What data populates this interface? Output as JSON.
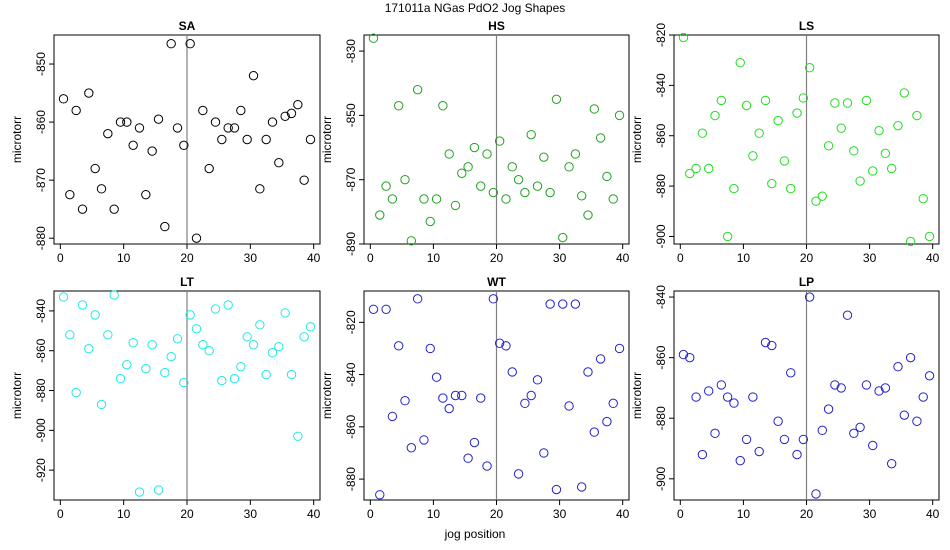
{
  "title": "171011a   NGas PdO2 Jog Shapes",
  "xlabel_bottom": "jog position",
  "chart_data": [
    {
      "type": "scatter",
      "title": "SA",
      "ylabel": "microtorr",
      "color": "#000000",
      "xlim": [
        -1,
        41
      ],
      "ylim": [
        -881,
        -845
      ],
      "yticks": [
        -880,
        -870,
        -860,
        -850
      ],
      "xticks": [
        0,
        10,
        20,
        30,
        40
      ],
      "vline": 20,
      "x": [
        0.5,
        1.5,
        2.5,
        3.5,
        4.5,
        5.5,
        6.5,
        7.5,
        8.5,
        9.5,
        10.5,
        11.5,
        12.5,
        13.5,
        14.5,
        15.5,
        16.5,
        17.5,
        18.5,
        19.5,
        20.5,
        21.5,
        22.5,
        23.5,
        24.5,
        25.5,
        26.5,
        27.5,
        28.5,
        29.5,
        30.5,
        31.5,
        32.5,
        33.5,
        34.5,
        35.5,
        36.5,
        37.5,
        38.5,
        39.5
      ],
      "y": [
        -856,
        -872.5,
        -858,
        -875,
        -855,
        -868,
        -871.5,
        -862,
        -875,
        -860,
        -860,
        -864,
        -861,
        -872.5,
        -865,
        -859.5,
        -878,
        -846.5,
        -861,
        -864,
        -846.5,
        -880,
        -858,
        -868,
        -860,
        -863,
        -861,
        -861,
        -858,
        -863,
        -852,
        -871.5,
        -863,
        -860,
        -867,
        -859,
        -858.5,
        -857,
        -870,
        -863
      ]
    },
    {
      "type": "scatter",
      "title": "HS",
      "ylabel": "microtorr",
      "color": "#22a022",
      "xlim": [
        -1,
        41
      ],
      "ylim": [
        -890,
        -825
      ],
      "yticks": [
        -890,
        -870,
        -850,
        -830
      ],
      "xticks": [
        0,
        10,
        20,
        30,
        40
      ],
      "vline": 20,
      "x": [
        0.5,
        1.5,
        2.5,
        3.5,
        4.5,
        5.5,
        6.5,
        7.5,
        8.5,
        9.5,
        10.5,
        11.5,
        12.5,
        13.5,
        14.5,
        15.5,
        16.5,
        17.5,
        18.5,
        19.5,
        20.5,
        21.5,
        22.5,
        23.5,
        24.5,
        25.5,
        26.5,
        27.5,
        28.5,
        29.5,
        30.5,
        31.5,
        32.5,
        33.5,
        34.5,
        35.5,
        36.5,
        37.5,
        38.5,
        39.5
      ],
      "y": [
        -826,
        -881,
        -872,
        -876,
        -847,
        -870,
        -889,
        -842,
        -876,
        -883,
        -876,
        -847,
        -862,
        -878,
        -868,
        -866,
        -860,
        -872,
        -862,
        -874,
        -858,
        -876,
        -866,
        -870,
        -874,
        -856,
        -872,
        -863,
        -874,
        -845,
        -888,
        -866,
        -862,
        -875,
        -881,
        -848,
        -857,
        -869,
        -876,
        -850
      ]
    },
    {
      "type": "scatter",
      "title": "LS",
      "ylabel": "microtorr",
      "color": "#22dd22",
      "xlim": [
        -1,
        41
      ],
      "ylim": [
        -903,
        -820
      ],
      "yticks": [
        -900,
        -880,
        -860,
        -840,
        -820
      ],
      "xticks": [
        0,
        10,
        20,
        30,
        40
      ],
      "vline": 20,
      "x": [
        0.5,
        1.5,
        2.5,
        3.5,
        4.5,
        5.5,
        6.5,
        7.5,
        8.5,
        9.5,
        10.5,
        11.5,
        12.5,
        13.5,
        14.5,
        15.5,
        16.5,
        17.5,
        18.5,
        19.5,
        20.5,
        21.5,
        22.5,
        23.5,
        24.5,
        25.5,
        26.5,
        27.5,
        28.5,
        29.5,
        30.5,
        31.5,
        32.5,
        33.5,
        34.5,
        35.5,
        36.5,
        37.5,
        38.5,
        39.5
      ],
      "y": [
        -821,
        -875,
        -873,
        -859,
        -873,
        -852,
        -846,
        -900,
        -881,
        -831,
        -848,
        -868,
        -859,
        -846,
        -879,
        -854,
        -870,
        -881,
        -851,
        -845,
        -833,
        -886,
        -884,
        -864,
        -847,
        -857,
        -847,
        -866,
        -878,
        -846,
        -874,
        -858,
        -867,
        -873,
        -856,
        -843,
        -902,
        -852,
        -885,
        -900
      ]
    },
    {
      "type": "scatter",
      "title": "LT",
      "ylabel": "microtorr",
      "color": "#22e8e8",
      "xlim": [
        -1,
        41
      ],
      "ylim": [
        -935,
        -830
      ],
      "yticks": [
        -920,
        -900,
        -880,
        -860,
        -840
      ],
      "xticks": [
        0,
        10,
        20,
        30,
        40
      ],
      "vline": 20,
      "x": [
        0.5,
        1.5,
        2.5,
        3.5,
        4.5,
        5.5,
        6.5,
        7.5,
        8.5,
        9.5,
        10.5,
        11.5,
        12.5,
        13.5,
        14.5,
        15.5,
        16.5,
        17.5,
        18.5,
        19.5,
        20.5,
        21.5,
        22.5,
        23.5,
        24.5,
        25.5,
        26.5,
        27.5,
        28.5,
        29.5,
        30.5,
        31.5,
        32.5,
        33.5,
        34.5,
        35.5,
        36.5,
        37.5,
        38.5,
        39.5
      ],
      "y": [
        -833,
        -852,
        -881,
        -837,
        -859,
        -842,
        -887,
        -852,
        -832,
        -874,
        -867,
        -856,
        -931,
        -869,
        -857,
        -930,
        -871,
        -863,
        -854,
        -876,
        -842,
        -849,
        -857,
        -860,
        -839,
        -875,
        -837,
        -874,
        -868,
        -853,
        -857,
        -847,
        -872,
        -861,
        -858,
        -841,
        -872,
        -903,
        -853,
        -848
      ]
    },
    {
      "type": "scatter",
      "title": "WT",
      "ylabel": "microtorr",
      "color": "#2222cc",
      "xlim": [
        -1,
        41
      ],
      "ylim": [
        -888,
        -808
      ],
      "yticks": [
        -880,
        -860,
        -840,
        -820
      ],
      "xticks": [
        0,
        10,
        20,
        30,
        40
      ],
      "vline": 20,
      "x": [
        0.5,
        1.5,
        2.5,
        3.5,
        4.5,
        5.5,
        6.5,
        7.5,
        8.5,
        9.5,
        10.5,
        11.5,
        12.5,
        13.5,
        14.5,
        15.5,
        16.5,
        17.5,
        18.5,
        19.5,
        20.5,
        21.5,
        22.5,
        23.5,
        24.5,
        25.5,
        26.5,
        27.5,
        28.5,
        29.5,
        30.5,
        31.5,
        32.5,
        33.5,
        34.5,
        35.5,
        36.5,
        37.5,
        38.5,
        39.5
      ],
      "y": [
        -815,
        -886,
        -815,
        -856,
        -829,
        -850,
        -868,
        -811,
        -865,
        -830,
        -841,
        -849,
        -853,
        -848,
        -848,
        -872,
        -866,
        -849,
        -875,
        -811,
        -828,
        -829,
        -839,
        -878,
        -851,
        -848,
        -842,
        -870,
        -813,
        -884,
        -813,
        -852,
        -813,
        -883,
        -839,
        -862,
        -834,
        -858,
        -851,
        -830
      ]
    },
    {
      "type": "scatter",
      "title": "LP",
      "ylabel": "microtorr",
      "color": "#2222cc",
      "xlim": [
        -1,
        41
      ],
      "ylim": [
        -907,
        -838
      ],
      "yticks": [
        -900,
        -880,
        -860,
        -840
      ],
      "xticks": [
        0,
        10,
        20,
        30,
        40
      ],
      "vline": 20,
      "x": [
        0.5,
        1.5,
        2.5,
        3.5,
        4.5,
        5.5,
        6.5,
        7.5,
        8.5,
        9.5,
        10.5,
        11.5,
        12.5,
        13.5,
        14.5,
        15.5,
        16.5,
        17.5,
        18.5,
        19.5,
        20.5,
        21.5,
        22.5,
        23.5,
        24.5,
        25.5,
        26.5,
        27.5,
        28.5,
        29.5,
        30.5,
        31.5,
        32.5,
        33.5,
        34.5,
        35.5,
        36.5,
        37.5,
        38.5,
        39.5
      ],
      "y": [
        -859,
        -860,
        -873,
        -892,
        -871,
        -885,
        -869,
        -873,
        -875,
        -894,
        -887,
        -873,
        -891,
        -855,
        -856,
        -881,
        -887,
        -865,
        -892,
        -887,
        -840,
        -905,
        -884,
        -877,
        -869,
        -870,
        -846,
        -885,
        -883,
        -869,
        -889,
        -871,
        -870,
        -895,
        -863,
        -879,
        -860,
        -881,
        -873,
        -866
      ]
    }
  ]
}
